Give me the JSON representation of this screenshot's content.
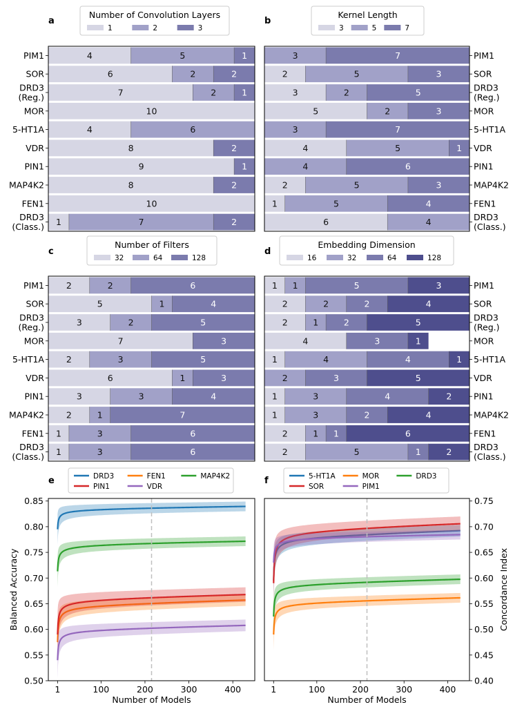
{
  "panel_labels": [
    "a",
    "b",
    "c",
    "d",
    "e",
    "f"
  ],
  "chart_data": [
    {
      "panel": "a",
      "type": "bar",
      "stacked": true,
      "orientation": "horizontal",
      "legend_title": "Number of Convolution Layers",
      "legend_placement": "top-center",
      "categories": [
        "PIM1",
        "SOR",
        "DRD3\n(Reg.)",
        "MOR",
        "5-HT1A",
        "VDR",
        "PIN1",
        "MAP4K2",
        "FEN1",
        "DRD3\n(Class.)"
      ],
      "series": [
        {
          "name": "1",
          "color": "#d6d6e4",
          "values": [
            4,
            6,
            7,
            10,
            4,
            8,
            9,
            8,
            10,
            1
          ]
        },
        {
          "name": "2",
          "color": "#a1a1c8",
          "values": [
            5,
            2,
            2,
            0,
            6,
            0,
            0,
            0,
            0,
            7
          ]
        },
        {
          "name": "3",
          "color": "#7b7bad",
          "values": [
            1,
            2,
            1,
            0,
            0,
            2,
            1,
            2,
            0,
            2
          ]
        }
      ]
    },
    {
      "panel": "b",
      "type": "bar",
      "stacked": true,
      "orientation": "horizontal",
      "legend_title": "Kernel Length",
      "legend_placement": "top-center",
      "categories": [
        "PIM1",
        "SOR",
        "DRD3\n(Reg.)",
        "MOR",
        "5-HT1A",
        "VDR",
        "PIN1",
        "MAP4K2",
        "FEN1",
        "DRD3\n(Class.)"
      ],
      "series": [
        {
          "name": "3",
          "color": "#d6d6e4",
          "values": [
            0,
            2,
            3,
            5,
            0,
            4,
            0,
            2,
            1,
            6
          ]
        },
        {
          "name": "5",
          "color": "#a1a1c8",
          "values": [
            3,
            5,
            2,
            2,
            3,
            5,
            4,
            5,
            5,
            4
          ]
        },
        {
          "name": "7",
          "color": "#7b7bad",
          "values": [
            7,
            3,
            5,
            3,
            7,
            1,
            6,
            3,
            4,
            0
          ]
        }
      ]
    },
    {
      "panel": "c",
      "type": "bar",
      "stacked": true,
      "orientation": "horizontal",
      "legend_title": "Number of Filters",
      "legend_placement": "top-center",
      "categories": [
        "PIM1",
        "SOR",
        "DRD3\n(Reg.)",
        "MOR",
        "5-HT1A",
        "VDR",
        "PIN1",
        "MAP4K2",
        "FEN1",
        "DRD3\n(Class.)"
      ],
      "series": [
        {
          "name": "32",
          "color": "#d6d6e4",
          "values": [
            2,
            5,
            3,
            7,
            2,
            6,
            3,
            2,
            1,
            1
          ]
        },
        {
          "name": "64",
          "color": "#a1a1c8",
          "values": [
            2,
            1,
            2,
            0,
            3,
            1,
            3,
            1,
            3,
            3
          ]
        },
        {
          "name": "128",
          "color": "#7b7bad",
          "values": [
            6,
            4,
            5,
            3,
            5,
            3,
            4,
            7,
            6,
            6
          ]
        }
      ]
    },
    {
      "panel": "d",
      "type": "bar",
      "stacked": true,
      "orientation": "horizontal",
      "legend_title": "Embedding Dimension",
      "legend_placement": "top-center",
      "categories": [
        "PIM1",
        "SOR",
        "DRD3\n(Reg.)",
        "MOR",
        "5-HT1A",
        "VDR",
        "PIN1",
        "MAP4K2",
        "FEN1",
        "DRD3\n(Class.)"
      ],
      "series": [
        {
          "name": "16",
          "color": "#d6d6e4",
          "values": [
            1,
            2,
            2,
            4,
            1,
            0,
            1,
            1,
            2,
            2
          ]
        },
        {
          "name": "32",
          "color": "#a1a1c8",
          "values": [
            1,
            2,
            1,
            0,
            4,
            2,
            3,
            3,
            1,
            5
          ]
        },
        {
          "name": "64",
          "color": "#7b7bad",
          "values": [
            5,
            2,
            2,
            3,
            4,
            3,
            4,
            2,
            1,
            1
          ]
        },
        {
          "name": "128",
          "color": "#4e4e8d",
          "values": [
            3,
            4,
            5,
            1,
            1,
            5,
            2,
            4,
            6,
            2
          ]
        }
      ]
    },
    {
      "panel": "e",
      "type": "line",
      "xlabel": "Number of Models",
      "ylabel": "Balanced Accuracy",
      "xlim": [
        -20,
        450
      ],
      "ylim": [
        0.5,
        0.855
      ],
      "xticks": [
        "1",
        "100",
        "200",
        "300",
        "400"
      ],
      "yticks": [
        "0.50",
        "0.55",
        "0.60",
        "0.65",
        "0.70",
        "0.75",
        "0.80",
        "0.85"
      ],
      "vline_x": 215,
      "grid": false,
      "legend_placement": "top-center",
      "series": [
        {
          "name": "DRD3",
          "color": "#1f77b4",
          "start": 0.795,
          "final": 0.84,
          "k": 7,
          "band": 0.01
        },
        {
          "name": "FEN1",
          "color": "#ff7f0e",
          "start": 0.575,
          "final": 0.66,
          "k": 30,
          "band": 0.012
        },
        {
          "name": "MAP4K2",
          "color": "#2ca02c",
          "start": 0.713,
          "final": 0.772,
          "k": 5,
          "band": 0.01
        },
        {
          "name": "PIN1",
          "color": "#d62728",
          "start": 0.59,
          "final": 0.669,
          "k": 9,
          "band": 0.015
        },
        {
          "name": "VDR",
          "color": "#9467bd",
          "start": 0.54,
          "final": 0.61,
          "k": 25,
          "band": 0.012
        }
      ]
    },
    {
      "panel": "f",
      "type": "line",
      "xlabel": "Number of Models",
      "ylabel": "Concordance Index",
      "xlim": [
        -20,
        450
      ],
      "ylim": [
        0.4,
        0.755
      ],
      "xticks": [
        "1",
        "100",
        "200",
        "300",
        "400"
      ],
      "yticks": [
        "0.40",
        "0.45",
        "0.50",
        "0.55",
        "0.60",
        "0.65",
        "0.70",
        "0.75"
      ],
      "vline_x": 215,
      "grid": false,
      "legend_placement": "top-center",
      "series": [
        {
          "name": "5-HT1A",
          "color": "#1f77b4",
          "start": 0.595,
          "final": 0.695,
          "k": 18,
          "band": 0.012
        },
        {
          "name": "MOR",
          "color": "#ff7f0e",
          "start": 0.49,
          "final": 0.564,
          "k": 30,
          "band": 0.01
        },
        {
          "name": "DRD3",
          "color": "#2ca02c",
          "start": 0.525,
          "final": 0.6,
          "k": 25,
          "band": 0.01
        },
        {
          "name": "SOR",
          "color": "#d62728",
          "start": 0.59,
          "final": 0.707,
          "k": 7,
          "band": 0.015
        },
        {
          "name": "PIM1",
          "color": "#9467bd",
          "start": 0.63,
          "final": 0.685,
          "k": 6,
          "band": 0.01
        }
      ]
    }
  ]
}
